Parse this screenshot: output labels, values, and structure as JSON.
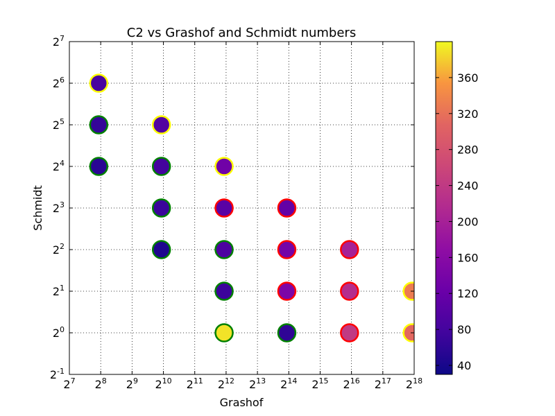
{
  "chart_data": {
    "type": "scatter",
    "title": "C2 vs Grashof and Schmidt numbers",
    "xlabel": "Grashof",
    "ylabel": "Schmidt",
    "x_scale": "log2",
    "y_scale": "log2",
    "x_exponent_range": [
      7,
      18
    ],
    "y_exponent_range": [
      -1,
      7
    ],
    "x_ticks": [
      {
        "base": "2",
        "exp": "7"
      },
      {
        "base": "2",
        "exp": "8"
      },
      {
        "base": "2",
        "exp": "9"
      },
      {
        "base": "2",
        "exp": "10"
      },
      {
        "base": "2",
        "exp": "11"
      },
      {
        "base": "2",
        "exp": "12"
      },
      {
        "base": "2",
        "exp": "13"
      },
      {
        "base": "2",
        "exp": "14"
      },
      {
        "base": "2",
        "exp": "15"
      },
      {
        "base": "2",
        "exp": "16"
      },
      {
        "base": "2",
        "exp": "17"
      },
      {
        "base": "2",
        "exp": "18"
      }
    ],
    "y_ticks": [
      {
        "base": "2",
        "exp": "-1"
      },
      {
        "base": "2",
        "exp": "0"
      },
      {
        "base": "2",
        "exp": "1"
      },
      {
        "base": "2",
        "exp": "2"
      },
      {
        "base": "2",
        "exp": "3"
      },
      {
        "base": "2",
        "exp": "4"
      },
      {
        "base": "2",
        "exp": "5"
      },
      {
        "base": "2",
        "exp": "6"
      },
      {
        "base": "2",
        "exp": "7"
      }
    ],
    "grid": true,
    "colormap": "plasma",
    "colorbar": {
      "min": 30,
      "max": 400,
      "ticks": [
        "40",
        "80",
        "120",
        "160",
        "200",
        "240",
        "280",
        "320",
        "360"
      ],
      "tick_values": [
        40,
        80,
        120,
        160,
        200,
        240,
        280,
        320,
        360
      ]
    },
    "points": [
      {
        "grashof": 245,
        "schmidt": 64,
        "c2": 85,
        "edge": "#ffff00"
      },
      {
        "grashof": 245,
        "schmidt": 32,
        "c2": 65,
        "edge": "#008000"
      },
      {
        "grashof": 245,
        "schmidt": 16,
        "c2": 55,
        "edge": "#008000"
      },
      {
        "grashof": 980,
        "schmidt": 32,
        "c2": 95,
        "edge": "#ffff00"
      },
      {
        "grashof": 980,
        "schmidt": 16,
        "c2": 80,
        "edge": "#008000"
      },
      {
        "grashof": 980,
        "schmidt": 8,
        "c2": 70,
        "edge": "#008000"
      },
      {
        "grashof": 980,
        "schmidt": 4,
        "c2": 45,
        "edge": "#008000"
      },
      {
        "grashof": 3920,
        "schmidt": 16,
        "c2": 130,
        "edge": "#ffff00"
      },
      {
        "grashof": 3920,
        "schmidt": 8,
        "c2": 105,
        "edge": "#ff0000"
      },
      {
        "grashof": 3920,
        "schmidt": 4,
        "c2": 90,
        "edge": "#008000"
      },
      {
        "grashof": 3920,
        "schmidt": 2,
        "c2": 72,
        "edge": "#008000"
      },
      {
        "grashof": 3920,
        "schmidt": 1,
        "c2": 390,
        "edge": "#008000"
      },
      {
        "grashof": 15680,
        "schmidt": 8,
        "c2": 115,
        "edge": "#ff0000"
      },
      {
        "grashof": 15680,
        "schmidt": 4,
        "c2": 135,
        "edge": "#ff0000"
      },
      {
        "grashof": 15680,
        "schmidt": 2,
        "c2": 145,
        "edge": "#ff0000"
      },
      {
        "grashof": 15680,
        "schmidt": 1,
        "c2": 60,
        "edge": "#008000"
      },
      {
        "grashof": 62720,
        "schmidt": 4,
        "c2": 200,
        "edge": "#ff0000"
      },
      {
        "grashof": 62720,
        "schmidt": 2,
        "c2": 220,
        "edge": "#ff0000"
      },
      {
        "grashof": 62720,
        "schmidt": 1,
        "c2": 240,
        "edge": "#ff0000"
      },
      {
        "grashof": 250880,
        "schmidt": 2,
        "c2": 330,
        "edge": "#ffff00"
      },
      {
        "grashof": 250880,
        "schmidt": 1,
        "c2": 310,
        "edge": "#ffff00"
      }
    ]
  }
}
